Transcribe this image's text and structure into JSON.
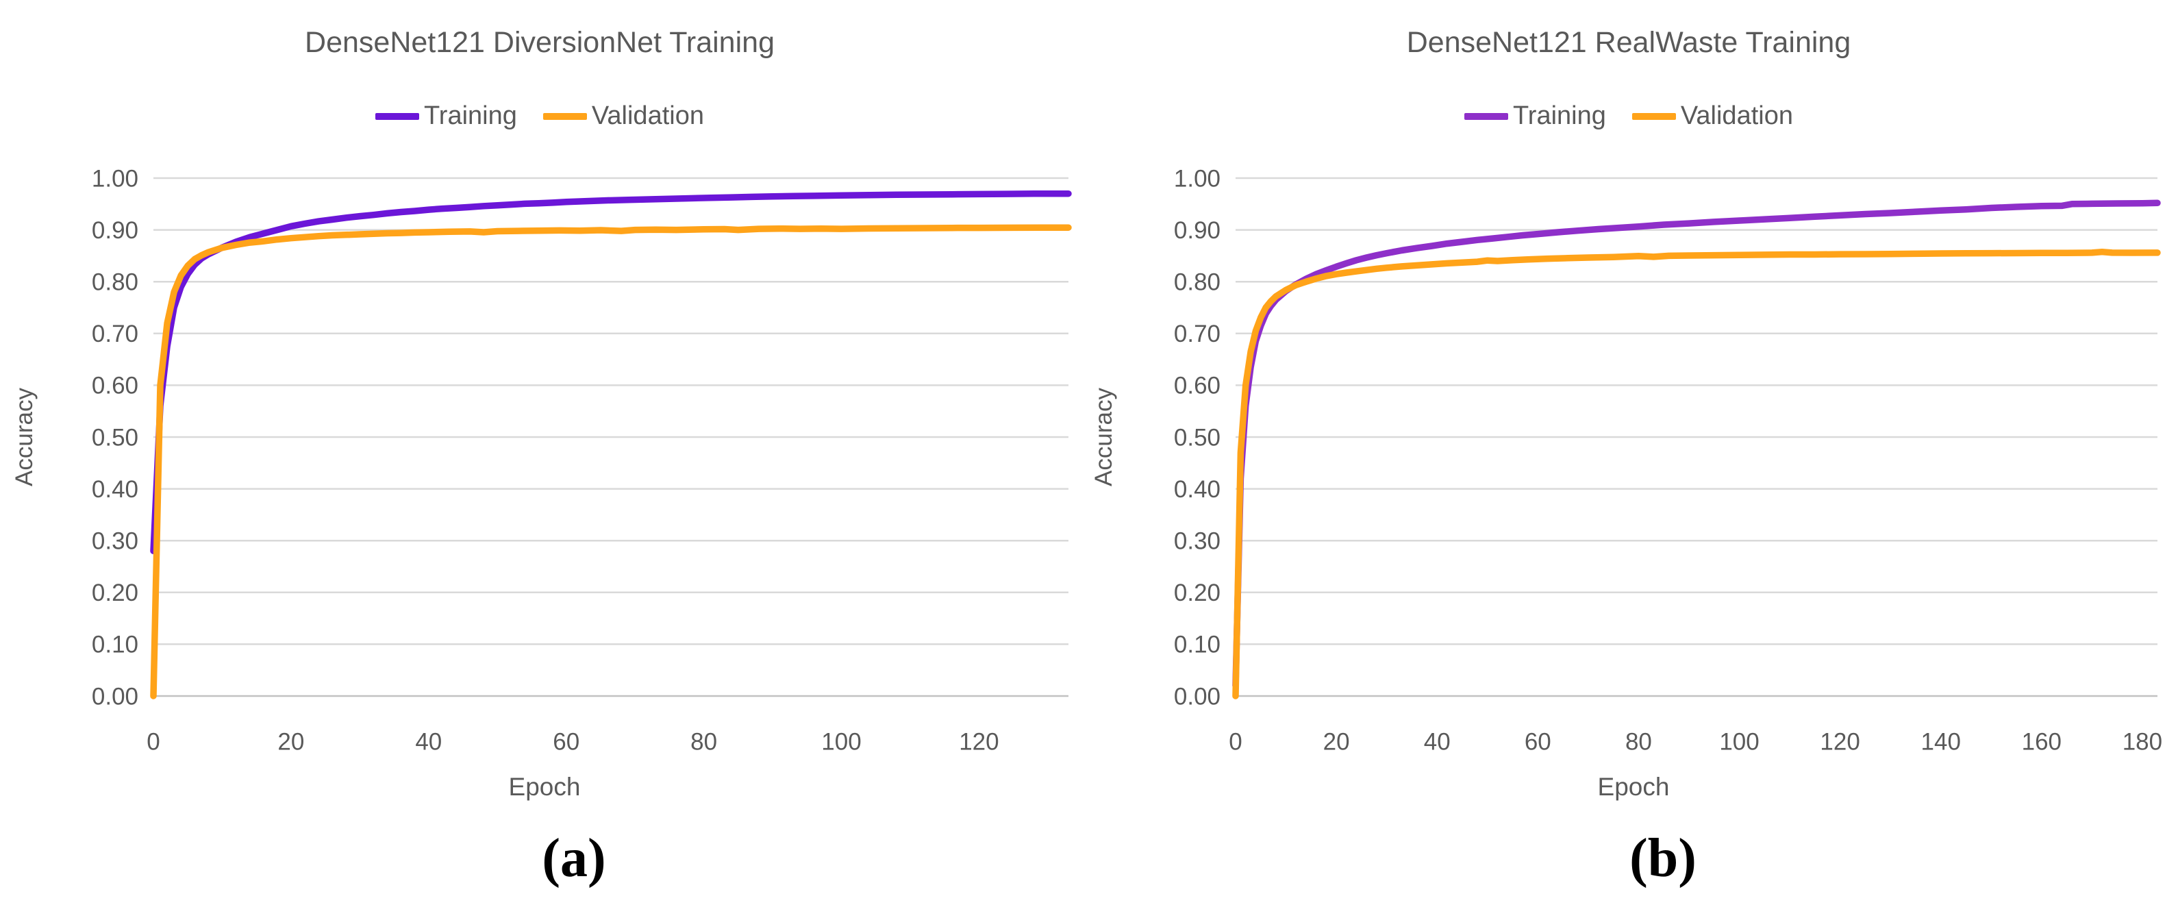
{
  "chart_data": [
    {
      "type": "line",
      "title": "DenseNet121 DiversionNet Training",
      "xlabel": "Epoch",
      "ylabel": "Accuracy",
      "panel_label": "(a)",
      "xlim": [
        0,
        133
      ],
      "ylim": [
        0.0,
        1.0
      ],
      "x_ticks": [
        0,
        20,
        40,
        60,
        80,
        100,
        120
      ],
      "y_tick_labels": [
        "1.00",
        "0.90",
        "0.80",
        "0.70",
        "0.60",
        "0.50",
        "0.40",
        "0.30",
        "0.20",
        "0.10",
        "0.00"
      ],
      "grid": "horizontal",
      "legend_position": "top-center",
      "text_color": "#595959",
      "grid_color": "#d9d9d9",
      "series": [
        {
          "name": "Training",
          "color": "#6b16d8",
          "points": [
            [
              0,
              0.28
            ],
            [
              1,
              0.56
            ],
            [
              2,
              0.675
            ],
            [
              3,
              0.75
            ],
            [
              4,
              0.79
            ],
            [
              5,
              0.815
            ],
            [
              6,
              0.833
            ],
            [
              7,
              0.845
            ],
            [
              8,
              0.853
            ],
            [
              10,
              0.866
            ],
            [
              12,
              0.877
            ],
            [
              14,
              0.886
            ],
            [
              16,
              0.893
            ],
            [
              18,
              0.9
            ],
            [
              20,
              0.907
            ],
            [
              22,
              0.912
            ],
            [
              24,
              0.9165
            ],
            [
              26,
              0.92
            ],
            [
              28,
              0.9235
            ],
            [
              30,
              0.9265
            ],
            [
              32,
              0.929
            ],
            [
              34,
              0.932
            ],
            [
              36,
              0.9345
            ],
            [
              38,
              0.9365
            ],
            [
              40,
              0.939
            ],
            [
              42,
              0.941
            ],
            [
              44,
              0.9425
            ],
            [
              46,
              0.944
            ],
            [
              48,
              0.946
            ],
            [
              50,
              0.9475
            ],
            [
              52,
              0.949
            ],
            [
              54,
              0.9505
            ],
            [
              56,
              0.9515
            ],
            [
              58,
              0.9525
            ],
            [
              60,
              0.954
            ],
            [
              63,
              0.9555
            ],
            [
              66,
              0.957
            ],
            [
              69,
              0.958
            ],
            [
              72,
              0.959
            ],
            [
              75,
              0.96
            ],
            [
              78,
              0.961
            ],
            [
              81,
              0.962
            ],
            [
              84,
              0.9628
            ],
            [
              87,
              0.9638
            ],
            [
              90,
              0.9645
            ],
            [
              93,
              0.9652
            ],
            [
              96,
              0.9658
            ],
            [
              100,
              0.9665
            ],
            [
              104,
              0.9672
            ],
            [
              108,
              0.9678
            ],
            [
              112,
              0.9682
            ],
            [
              116,
              0.9687
            ],
            [
              120,
              0.969
            ],
            [
              124,
              0.9694
            ],
            [
              128,
              0.9698
            ],
            [
              133,
              0.97
            ]
          ]
        },
        {
          "name": "Validation",
          "color": "#ffa319",
          "points": [
            [
              0,
              0.0
            ],
            [
              1,
              0.6
            ],
            [
              2,
              0.72
            ],
            [
              3,
              0.78
            ],
            [
              4,
              0.812
            ],
            [
              5,
              0.831
            ],
            [
              6,
              0.8435
            ],
            [
              7,
              0.851
            ],
            [
              8,
              0.857
            ],
            [
              10,
              0.8655
            ],
            [
              12,
              0.871
            ],
            [
              14,
              0.8755
            ],
            [
              16,
              0.878
            ],
            [
              18,
              0.8815
            ],
            [
              20,
              0.884
            ],
            [
              22,
              0.886
            ],
            [
              24,
              0.888
            ],
            [
              26,
              0.8895
            ],
            [
              28,
              0.8905
            ],
            [
              30,
              0.8915
            ],
            [
              32,
              0.8925
            ],
            [
              34,
              0.8935
            ],
            [
              36,
              0.894
            ],
            [
              38,
              0.895
            ],
            [
              40,
              0.8955
            ],
            [
              43,
              0.8965
            ],
            [
              46,
              0.897
            ],
            [
              48,
              0.8955
            ],
            [
              50,
              0.8975
            ],
            [
              53,
              0.898
            ],
            [
              56,
              0.8985
            ],
            [
              59,
              0.899
            ],
            [
              62,
              0.8985
            ],
            [
              65,
              0.8995
            ],
            [
              68,
              0.898
            ],
            [
              70,
              0.9
            ],
            [
              73,
              0.9005
            ],
            [
              76,
              0.9
            ],
            [
              80,
              0.901
            ],
            [
              83,
              0.9015
            ],
            [
              85,
              0.9
            ],
            [
              88,
              0.902
            ],
            [
              91,
              0.9025
            ],
            [
              94,
              0.902
            ],
            [
              97,
              0.9025
            ],
            [
              100,
              0.902
            ],
            [
              104,
              0.9028
            ],
            [
              108,
              0.9032
            ],
            [
              112,
              0.9035
            ],
            [
              116,
              0.9038
            ],
            [
              120,
              0.904
            ],
            [
              125,
              0.9042
            ],
            [
              130,
              0.9045
            ],
            [
              133,
              0.9045
            ]
          ]
        }
      ]
    },
    {
      "type": "line",
      "title": "DenseNet121 RealWaste Training",
      "xlabel": "Epoch",
      "ylabel": "Accuracy",
      "panel_label": "(b)",
      "xlim": [
        0,
        183
      ],
      "ylim": [
        0.0,
        1.0
      ],
      "x_ticks": [
        0,
        20,
        40,
        60,
        80,
        100,
        120,
        140,
        160,
        180
      ],
      "y_tick_labels": [
        "1.00",
        "0.90",
        "0.80",
        "0.70",
        "0.60",
        "0.50",
        "0.40",
        "0.30",
        "0.20",
        "0.10",
        "0.00"
      ],
      "grid": "horizontal",
      "legend_position": "top-center",
      "text_color": "#595959",
      "grid_color": "#d9d9d9",
      "series": [
        {
          "name": "Training",
          "color": "#8e2fc9",
          "points": [
            [
              0,
              0.02
            ],
            [
              1,
              0.42
            ],
            [
              2,
              0.56
            ],
            [
              3,
              0.635
            ],
            [
              4,
              0.685
            ],
            [
              5,
              0.715
            ],
            [
              6,
              0.738
            ],
            [
              7,
              0.753
            ],
            [
              8,
              0.765
            ],
            [
              10,
              0.782
            ],
            [
              12,
              0.795
            ],
            [
              14,
              0.8055
            ],
            [
              16,
              0.8145
            ],
            [
              18,
              0.822
            ],
            [
              20,
              0.829
            ],
            [
              22,
              0.8355
            ],
            [
              24,
              0.8415
            ],
            [
              26,
              0.8465
            ],
            [
              28,
              0.851
            ],
            [
              30,
              0.855
            ],
            [
              33,
              0.8605
            ],
            [
              36,
              0.865
            ],
            [
              39,
              0.869
            ],
            [
              42,
              0.8735
            ],
            [
              45,
              0.877
            ],
            [
              48,
              0.8805
            ],
            [
              51,
              0.8835
            ],
            [
              54,
              0.8865
            ],
            [
              57,
              0.8895
            ],
            [
              60,
              0.892
            ],
            [
              64,
              0.8955
            ],
            [
              68,
              0.8985
            ],
            [
              72,
              0.9015
            ],
            [
              76,
              0.904
            ],
            [
              80,
              0.9065
            ],
            [
              85,
              0.91
            ],
            [
              90,
              0.9125
            ],
            [
              95,
              0.9155
            ],
            [
              100,
              0.918
            ],
            [
              105,
              0.9205
            ],
            [
              110,
              0.923
            ],
            [
              115,
              0.9255
            ],
            [
              120,
              0.928
            ],
            [
              125,
              0.9305
            ],
            [
              130,
              0.9325
            ],
            [
              135,
              0.935
            ],
            [
              140,
              0.9375
            ],
            [
              145,
              0.9395
            ],
            [
              150,
              0.9425
            ],
            [
              155,
              0.9445
            ],
            [
              160,
              0.946
            ],
            [
              164,
              0.9465
            ],
            [
              166,
              0.95
            ],
            [
              170,
              0.9505
            ],
            [
              175,
              0.951
            ],
            [
              180,
              0.9515
            ],
            [
              183,
              0.952
            ]
          ]
        },
        {
          "name": "Validation",
          "color": "#ffa319",
          "points": [
            [
              0,
              0.0
            ],
            [
              1,
              0.47
            ],
            [
              2,
              0.6
            ],
            [
              3,
              0.665
            ],
            [
              4,
              0.705
            ],
            [
              5,
              0.731
            ],
            [
              6,
              0.75
            ],
            [
              7,
              0.762
            ],
            [
              8,
              0.7715
            ],
            [
              10,
              0.784
            ],
            [
              12,
              0.7935
            ],
            [
              14,
              0.8
            ],
            [
              16,
              0.806
            ],
            [
              18,
              0.811
            ],
            [
              20,
              0.8145
            ],
            [
              22,
              0.8175
            ],
            [
              24,
              0.82
            ],
            [
              26,
              0.8225
            ],
            [
              28,
              0.825
            ],
            [
              30,
              0.827
            ],
            [
              33,
              0.8295
            ],
            [
              36,
              0.8315
            ],
            [
              39,
              0.8335
            ],
            [
              42,
              0.8355
            ],
            [
              45,
              0.837
            ],
            [
              48,
              0.8385
            ],
            [
              50,
              0.841
            ],
            [
              52,
              0.84
            ],
            [
              55,
              0.8415
            ],
            [
              58,
              0.843
            ],
            [
              62,
              0.8445
            ],
            [
              66,
              0.8455
            ],
            [
              70,
              0.8465
            ],
            [
              75,
              0.8475
            ],
            [
              80,
              0.8495
            ],
            [
              83,
              0.848
            ],
            [
              86,
              0.85
            ],
            [
              90,
              0.8505
            ],
            [
              95,
              0.851
            ],
            [
              100,
              0.8515
            ],
            [
              105,
              0.852
            ],
            [
              110,
              0.8525
            ],
            [
              115,
              0.8525
            ],
            [
              120,
              0.853
            ],
            [
              125,
              0.8532
            ],
            [
              130,
              0.8535
            ],
            [
              135,
              0.854
            ],
            [
              140,
              0.8545
            ],
            [
              145,
              0.8548
            ],
            [
              150,
              0.855
            ],
            [
              155,
              0.8552
            ],
            [
              160,
              0.8555
            ],
            [
              165,
              0.8555
            ],
            [
              170,
              0.856
            ],
            [
              172,
              0.8575
            ],
            [
              174,
              0.856
            ],
            [
              178,
              0.8558
            ],
            [
              183,
              0.856
            ]
          ]
        }
      ]
    }
  ]
}
